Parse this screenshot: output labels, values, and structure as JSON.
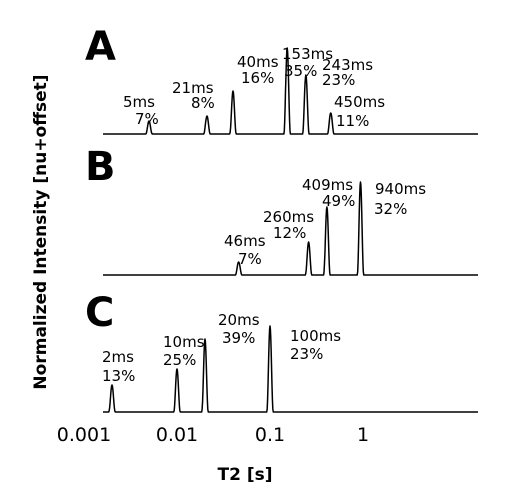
{
  "chart_data": {
    "type": "line",
    "xlabel": "T2 [s]",
    "ylabel": "Normalized Intensity [nu+offset]",
    "xscale": "log",
    "xlim": [
      0.0008,
      10
    ],
    "xticks": [
      {
        "value": 0.001,
        "label": "0.001"
      },
      {
        "value": 0.01,
        "label": "0.01"
      },
      {
        "value": 0.1,
        "label": "0.1"
      },
      {
        "value": 1,
        "label": "1"
      }
    ],
    "grid": false,
    "legend": "none",
    "panels": [
      {
        "name": "A",
        "peaks": [
          {
            "t2": 0.005,
            "time_label": "5ms",
            "fraction_label": "7%",
            "height": 0.13
          },
          {
            "t2": 0.021,
            "time_label": "21ms",
            "fraction_label": "8%",
            "height": 0.18
          },
          {
            "t2": 0.04,
            "time_label": "40ms",
            "fraction_label": "16%",
            "height": 0.43
          },
          {
            "t2": 0.153,
            "time_label": "153ms",
            "fraction_label": "35%",
            "height": 0.86
          },
          {
            "t2": 0.243,
            "time_label": "243ms",
            "fraction_label": "23%",
            "height": 0.59
          },
          {
            "t2": 0.45,
            "time_label": "450ms",
            "fraction_label": "11%",
            "height": 0.21
          }
        ]
      },
      {
        "name": "B",
        "peaks": [
          {
            "t2": 0.046,
            "time_label": "46ms",
            "fraction_label": "7%",
            "height": 0.13
          },
          {
            "t2": 0.26,
            "time_label": "260ms",
            "fraction_label": "12%",
            "height": 0.33
          },
          {
            "t2": 0.409,
            "time_label": "409ms",
            "fraction_label": "49%",
            "height": 0.68
          },
          {
            "t2": 0.94,
            "time_label": "940ms",
            "fraction_label": "32%",
            "height": 0.93
          }
        ]
      },
      {
        "name": "C",
        "peaks": [
          {
            "t2": 0.002,
            "time_label": "2ms",
            "fraction_label": "13%",
            "height": 0.27
          },
          {
            "t2": 0.01,
            "time_label": "10ms",
            "fraction_label": "25%",
            "height": 0.43
          },
          {
            "t2": 0.02,
            "time_label": "20ms",
            "fraction_label": "39%",
            "height": 0.73
          },
          {
            "t2": 0.1,
            "time_label": "100ms",
            "fraction_label": "23%",
            "height": 0.86
          }
        ]
      }
    ]
  }
}
